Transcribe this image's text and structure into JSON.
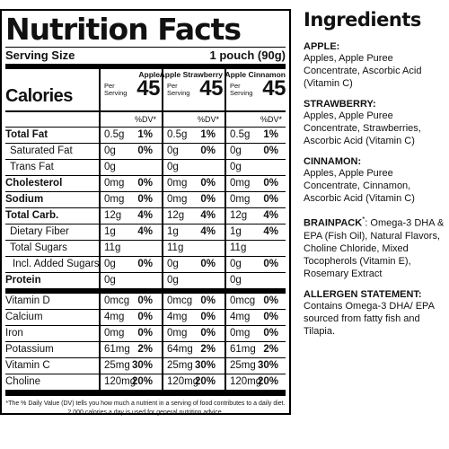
{
  "panel": {
    "title": "Nutrition Facts",
    "serving_label": "Serving Size",
    "serving_value": "1 pouch (90g)",
    "calories_label": "Calories",
    "per_serving": "Per Serving",
    "dv_header": "%DV*",
    "columns": [
      {
        "name": "Apple",
        "calories": "45"
      },
      {
        "name": "Apple Strawberry",
        "calories": "45"
      },
      {
        "name": "Apple Cinnamon",
        "calories": "45"
      }
    ],
    "rows": [
      {
        "label": "Total Fat",
        "vals": [
          "0.5g",
          "1%",
          "0.5g",
          "1%",
          "0.5g",
          "1%"
        ]
      },
      {
        "label": "Saturated Fat",
        "vals": [
          "0g",
          "0%",
          "0g",
          "0%",
          "0g",
          "0%"
        ]
      },
      {
        "label": "Trans Fat",
        "vals": [
          "0g",
          "",
          "0g",
          "",
          "0g",
          ""
        ]
      },
      {
        "label": "Cholesterol",
        "vals": [
          "0mg",
          "0%",
          "0mg",
          "0%",
          "0mg",
          "0%"
        ]
      },
      {
        "label": "Sodium",
        "vals": [
          "0mg",
          "0%",
          "0mg",
          "0%",
          "0mg",
          "0%"
        ]
      },
      {
        "label": "Total Carb.",
        "vals": [
          "12g",
          "4%",
          "12g",
          "4%",
          "12g",
          "4%"
        ]
      },
      {
        "label": "Dietary Fiber",
        "vals": [
          "1g",
          "4%",
          "1g",
          "4%",
          "1g",
          "4%"
        ]
      },
      {
        "label": "Total Sugars",
        "vals": [
          "11g",
          "",
          "11g",
          "",
          "11g",
          ""
        ]
      },
      {
        "label": "Incl. Added Sugars",
        "vals": [
          "0g",
          "0%",
          "0g",
          "0%",
          "0g",
          "0%"
        ]
      },
      {
        "label": "Protein",
        "vals": [
          "0g",
          "",
          "0g",
          "",
          "0g",
          ""
        ]
      },
      {
        "label": "Vitamin D",
        "vals": [
          "0mcg",
          "0%",
          "0mcg",
          "0%",
          "0mcg",
          "0%"
        ]
      },
      {
        "label": "Calcium",
        "vals": [
          "4mg",
          "0%",
          "4mg",
          "0%",
          "4mg",
          "0%"
        ]
      },
      {
        "label": "Iron",
        "vals": [
          "0mg",
          "0%",
          "0mg",
          "0%",
          "0mg",
          "0%"
        ]
      },
      {
        "label": "Potassium",
        "vals": [
          "61mg",
          "2%",
          "64mg",
          "2%",
          "61mg",
          "2%"
        ]
      },
      {
        "label": "Vitamin C",
        "vals": [
          "25mg",
          "30%",
          "25mg",
          "30%",
          "25mg",
          "30%"
        ]
      },
      {
        "label": "Choline",
        "vals": [
          "120mg",
          "20%",
          "120mg",
          "20%",
          "120mg",
          "20%"
        ]
      }
    ],
    "footnote": "*The % Daily Value (DV) tells you how much a nutrient in a serving of food contributes to a daily diet. 2,000 calories a day is used for general nutrition advice."
  },
  "ingredients": {
    "heading": "Ingredients",
    "apple_heading": "APPLE:",
    "apple_text": "Apples, Apple Puree Concentrate, Ascorbic Acid (Vitamin C)",
    "strawberry_heading": "STRAWBERRY:",
    "strawberry_text": "Apples, Apple Puree Concentrate, Strawberries, Ascorbic Acid (Vitamin C)",
    "cinnamon_heading": "CINNAMON:",
    "cinnamon_text": "Apples, Apple Puree Concentrate, Cinnamon, Ascorbic Acid (Vitamin C)",
    "brainpack_heading": "BRAINPACK",
    "brainpack_mark": "*",
    "brainpack_text": ": Omega-3 DHA & EPA (Fish Oil), Natural Flavors, Choline Chloride, Mixed Tocopherols (Vitamin E), Rosemary Extract",
    "allergen_heading": "ALLERGEN STATEMENT:",
    "allergen_text": "Contains Omega-3 DHA/ EPA sourced from fatty fish and Tilapia."
  }
}
